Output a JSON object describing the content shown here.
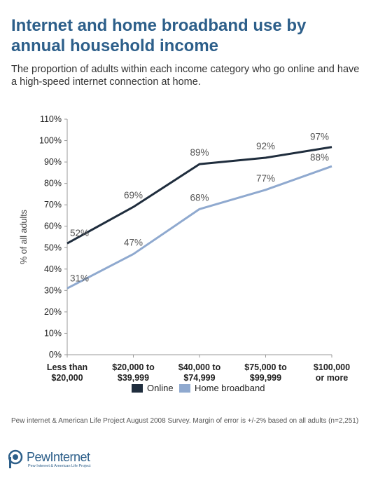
{
  "header": {
    "title": "Internet and home broadband use by annual household income",
    "subtitle": "The proportion of adults within each income category who go online and have a high-speed internet connection at home."
  },
  "chart_data": {
    "type": "line",
    "title": "",
    "xlabel": "",
    "ylabel": "% of all adults",
    "categories": [
      "Less than $20,000",
      "$20,000 to $39,999",
      "$40,000 to $74,999",
      "$75,000 to $99,999",
      "$100,000 or more"
    ],
    "category_lines": [
      [
        "Less than",
        "$20,000"
      ],
      [
        "$20,000 to",
        "$39,999"
      ],
      [
        "$40,000 to",
        "$74,999"
      ],
      [
        "$75,000 to",
        "$99,999"
      ],
      [
        "$100,000",
        "or more"
      ]
    ],
    "ylim": [
      0,
      110
    ],
    "yticks": [
      0,
      10,
      20,
      30,
      40,
      50,
      60,
      70,
      80,
      90,
      100,
      110
    ],
    "series": [
      {
        "name": "Online",
        "values": [
          52,
          69,
          89,
          92,
          97
        ],
        "labels": [
          "52%",
          "69%",
          "89%",
          "92%",
          "97%"
        ],
        "color": "#1f2d3d"
      },
      {
        "name": "Home broadband",
        "values": [
          31,
          47,
          68,
          77,
          88
        ],
        "labels": [
          "31%",
          "47%",
          "68%",
          "77%",
          "88%"
        ],
        "color": "#8fa9cf"
      }
    ],
    "grid": false,
    "legend": "bottom"
  },
  "footer": {
    "source": "Pew internet & American Life Project August 2008 Survey. Margin of error is +/-2% based on all adults (n=2,251)",
    "logo_text": "PewInternet",
    "logo_sub": "Pew Internet & American Life Project"
  },
  "colors": {
    "title": "#2d5f8a",
    "online": "#1f2d3d",
    "broadband": "#8fa9cf"
  }
}
